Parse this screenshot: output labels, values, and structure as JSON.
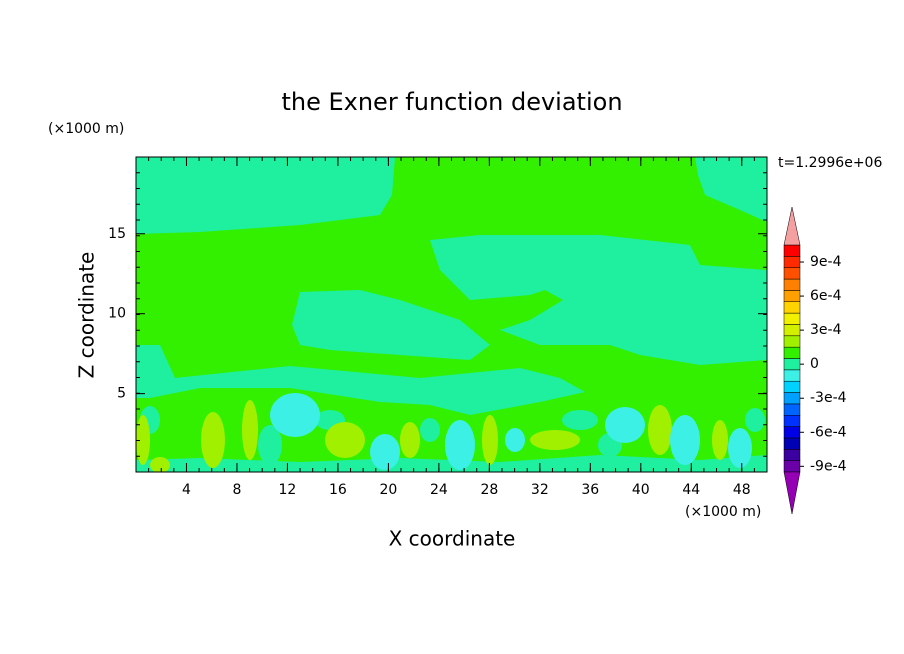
{
  "chart_data": {
    "type": "contour",
    "title": "the Exner function deviation",
    "xlabel": "X coordinate",
    "ylabel": "Z coordinate",
    "x_unit": "(×1000 m)",
    "y_unit": "(×1000 m)",
    "annotation": "t=1.2996e+06",
    "xlim": [
      0,
      50
    ],
    "ylim": [
      0.1,
      19.8
    ],
    "xticks": [
      4,
      8,
      12,
      16,
      20,
      24,
      28,
      32,
      36,
      40,
      44,
      48
    ],
    "yticks": [
      5,
      10,
      15
    ],
    "colorbar": {
      "bounds": [
        -0.001,
        -0.0009,
        -0.0008,
        -0.0007,
        -0.0006,
        -0.0005,
        -0.0004,
        -0.0003,
        -0.0002,
        -0.0001,
        0,
        0.0001,
        0.0002,
        0.0003,
        0.0004,
        0.0005,
        0.0006,
        0.0007,
        0.0008,
        0.0009,
        0.001
      ],
      "colors": [
        "#6a00a8",
        "#3c00a0",
        "#0000b4",
        "#0000e6",
        "#0032ff",
        "#0064ff",
        "#00a0ff",
        "#00d2ff",
        "#3cf0e6",
        "#1ef0a0",
        "#32f000",
        "#a0f000",
        "#d2f000",
        "#f0f000",
        "#ffd200",
        "#ffa000",
        "#ff8000",
        "#ff5000",
        "#ff2a00",
        "#ff0000"
      ],
      "under_color": "#9600b4",
      "over_color": "#f4a0a0",
      "ticks": [
        {
          "value": -0.0009,
          "label": "-9e-4"
        },
        {
          "value": -0.0006,
          "label": "-6e-4"
        },
        {
          "value": -0.0003,
          "label": "-3e-4"
        },
        0,
        {
          "value": 0.0003,
          "label": "3e-4"
        },
        {
          "value": 0.0006,
          "label": "6e-4"
        },
        {
          "value": 0.0009,
          "label": "9e-4"
        }
      ]
    }
  }
}
